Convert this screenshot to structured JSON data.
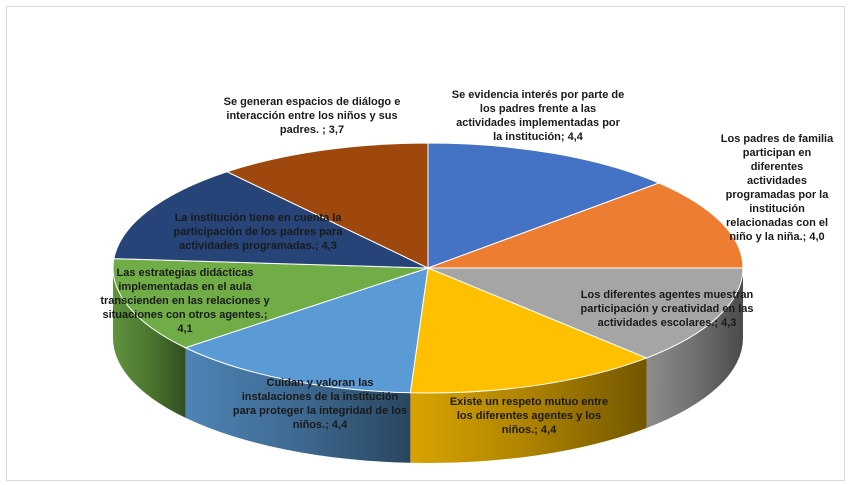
{
  "chart_data": {
    "type": "pie",
    "title": "",
    "style": "3d",
    "slices": [
      {
        "label": "Se evidencia interés por parte de los padres frente a  las actividades implementadas por la institución",
        "value": 4.4,
        "value_text": "4,4",
        "color": "#4472c4",
        "lines": [
          "Se evidencia interés por parte de",
          "los padres frente a  las",
          "actividades implementadas por",
          "la institución; 4,4"
        ]
      },
      {
        "label": "Los padres de familia participan en diferentes actividades programadas por  la institución relacionadas con el niño y la niña.",
        "value": 4.0,
        "value_text": "4,0",
        "color": "#ed7d31",
        "lines": [
          "Los padres de familia",
          "participan en",
          "diferentes",
          "actividades",
          "programadas por  la",
          "institución",
          "relacionadas con el",
          "niño y la niña.; 4,0"
        ]
      },
      {
        "label": "Los diferentes agentes muestran participación y creatividad en las actividades escolares.",
        "value": 4.3,
        "value_text": "4,3",
        "color": "#a5a5a5",
        "lines": [
          "Los diferentes agentes muestran",
          "participación y creatividad en las",
          "actividades escolares.; 4,3"
        ]
      },
      {
        "label": "Existe un respeto mutuo entre los diferentes agentes y los niños.",
        "value": 4.4,
        "value_text": "4,4",
        "color": "#ffc000",
        "lines": [
          "Existe un respeto mutuo entre",
          "los diferentes agentes y los",
          "niños.; 4,4"
        ]
      },
      {
        "label": "Cuidan y valoran las instalaciones de la institución para proteger la integridad de los niños.",
        "value": 4.4,
        "value_text": "4,4",
        "color": "#5b9bd5",
        "lines": [
          "Cuidan y valoran las",
          "instalaciones de la institución",
          "para proteger la integridad de los",
          "niños.; 4,4"
        ]
      },
      {
        "label": "Las estrategias didácticas implementadas en el aula transcienden en las relaciones y situaciones con otros agentes.",
        "value": 4.1,
        "value_text": "4,1",
        "color": "#70ad47",
        "lines": [
          "Las estrategias didácticas",
          "implementadas en el aula",
          "transcienden en las relaciones y",
          "situaciones con otros agentes.;",
          "4,1"
        ]
      },
      {
        "label": "La institución tiene en cuenta  la participación de los padres para actividades programadas.",
        "value": 4.3,
        "value_text": "4,3",
        "color": "#264478",
        "lines": [
          "La institución tiene en cuenta  la",
          "participación de los padres para",
          "actividades programadas.; 4,3"
        ]
      },
      {
        "label": "Se generan espacios de diálogo e interacción entre los niños y sus padres.",
        "value": 3.7,
        "value_text": "3,7",
        "color": "#9e480e",
        "lines": [
          "Se generan espacios de diálogo e",
          "interacción entre los niños y sus",
          "padres. ; 3,7"
        ]
      }
    ]
  }
}
